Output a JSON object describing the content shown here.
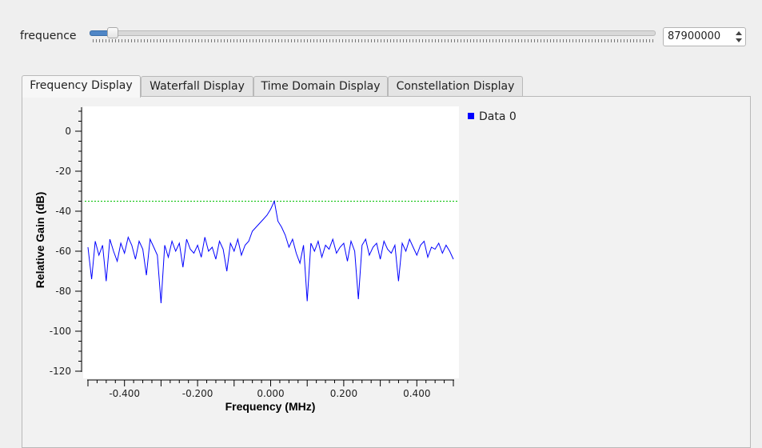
{
  "control": {
    "label": "frequence",
    "value": "87900000",
    "slider_fraction": 0.04
  },
  "tabs": [
    {
      "label": "Frequency Display",
      "active": true
    },
    {
      "label": "Waterfall Display",
      "active": false
    },
    {
      "label": "Time Domain Display",
      "active": false
    },
    {
      "label": "Constellation Display",
      "active": false
    }
  ],
  "chart_data": {
    "type": "line",
    "xlabel": "Frequency (MHz)",
    "ylabel": "Relative Gain (dB)",
    "xlim": [
      -0.5,
      0.5
    ],
    "ylim": [
      -120,
      10
    ],
    "xticks": [
      "-0.400",
      "-0.200",
      "0.000",
      "0.200",
      "0.400"
    ],
    "yticks": [
      "0",
      "-20",
      "-40",
      "-60",
      "-80",
      "-100",
      "-120"
    ],
    "grid": false,
    "legend_position": "top-right outside",
    "series_color": "#0000ff",
    "threshold_line": -35,
    "series": [
      {
        "name": "Data 0",
        "x": [
          -0.5,
          -0.49,
          -0.48,
          -0.47,
          -0.46,
          -0.45,
          -0.44,
          -0.43,
          -0.42,
          -0.41,
          -0.4,
          -0.39,
          -0.38,
          -0.37,
          -0.36,
          -0.35,
          -0.34,
          -0.33,
          -0.32,
          -0.31,
          -0.3,
          -0.29,
          -0.28,
          -0.27,
          -0.26,
          -0.25,
          -0.24,
          -0.23,
          -0.22,
          -0.21,
          -0.2,
          -0.19,
          -0.18,
          -0.17,
          -0.16,
          -0.15,
          -0.14,
          -0.13,
          -0.12,
          -0.11,
          -0.1,
          -0.09,
          -0.08,
          -0.07,
          -0.06,
          -0.05,
          -0.04,
          -0.03,
          -0.02,
          -0.01,
          0.0,
          0.01,
          0.02,
          0.03,
          0.04,
          0.05,
          0.06,
          0.07,
          0.08,
          0.09,
          0.1,
          0.11,
          0.12,
          0.13,
          0.14,
          0.15,
          0.16,
          0.17,
          0.18,
          0.19,
          0.2,
          0.21,
          0.22,
          0.23,
          0.24,
          0.25,
          0.26,
          0.27,
          0.28,
          0.29,
          0.3,
          0.31,
          0.32,
          0.33,
          0.34,
          0.35,
          0.36,
          0.37,
          0.38,
          0.39,
          0.4,
          0.41,
          0.42,
          0.43,
          0.44,
          0.45,
          0.46,
          0.47,
          0.48,
          0.49,
          0.5
        ],
        "values": [
          -58,
          -74,
          -55,
          -62,
          -57,
          -75,
          -54,
          -60,
          -65,
          -56,
          -61,
          -53,
          -57,
          -64,
          -55,
          -59,
          -72,
          -54,
          -58,
          -62,
          -86,
          -57,
          -63,
          -55,
          -60,
          -56,
          -68,
          -54,
          -59,
          -61,
          -57,
          -63,
          -53,
          -60,
          -58,
          -64,
          -55,
          -59,
          -70,
          -56,
          -60,
          -54,
          -62,
          -57,
          -55,
          -50,
          -48,
          -46,
          -44,
          -42,
          -39,
          -35,
          -45,
          -48,
          -52,
          -58,
          -54,
          -61,
          -66,
          -57,
          -85,
          -56,
          -60,
          -55,
          -63,
          -57,
          -59,
          -54,
          -61,
          -58,
          -56,
          -65,
          -55,
          -60,
          -84,
          -57,
          -54,
          -62,
          -58,
          -56,
          -64,
          -55,
          -59,
          -61,
          -57,
          -75,
          -56,
          -60,
          -54,
          -58,
          -62,
          -57,
          -55,
          -63,
          -58,
          -59,
          -56,
          -61,
          -57,
          -60,
          -64
        ]
      }
    ]
  }
}
